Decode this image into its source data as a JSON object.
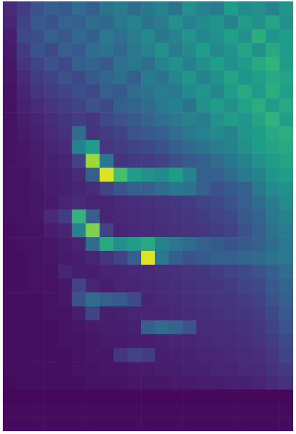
{
  "chart_data": {
    "type": "heatmap",
    "tick_labels": false,
    "color_range": [
      0,
      1
    ],
    "cells": [
      [
        0.12,
        0.18,
        0.25,
        0.3,
        0.28,
        0.35,
        0.3,
        0.38,
        0.42,
        0.35,
        0.4,
        0.45,
        0.38,
        0.5,
        0.45,
        0.42,
        0.55,
        0.48,
        0.5,
        0.45,
        0.52
      ],
      [
        0.1,
        0.2,
        0.28,
        0.25,
        0.32,
        0.3,
        0.36,
        0.33,
        0.4,
        0.45,
        0.38,
        0.42,
        0.5,
        0.44,
        0.48,
        0.52,
        0.45,
        0.55,
        0.5,
        0.58,
        0.5
      ],
      [
        0.08,
        0.22,
        0.24,
        0.3,
        0.27,
        0.34,
        0.3,
        0.4,
        0.36,
        0.42,
        0.47,
        0.4,
        0.45,
        0.52,
        0.46,
        0.5,
        0.56,
        0.5,
        0.62,
        0.52,
        0.55
      ],
      [
        0.07,
        0.18,
        0.26,
        0.22,
        0.3,
        0.28,
        0.35,
        0.38,
        0.33,
        0.4,
        0.44,
        0.5,
        0.42,
        0.48,
        0.55,
        0.47,
        0.52,
        0.58,
        0.5,
        0.6,
        0.54
      ],
      [
        0.06,
        0.15,
        0.2,
        0.25,
        0.22,
        0.3,
        0.32,
        0.28,
        0.37,
        0.4,
        0.36,
        0.45,
        0.5,
        0.44,
        0.5,
        0.56,
        0.5,
        0.54,
        0.6,
        0.65,
        0.55
      ],
      [
        0.06,
        0.12,
        0.18,
        0.2,
        0.25,
        0.22,
        0.28,
        0.32,
        0.35,
        0.3,
        0.42,
        0.38,
        0.46,
        0.52,
        0.45,
        0.5,
        0.58,
        0.52,
        0.56,
        0.6,
        0.58
      ],
      [
        0.05,
        0.1,
        0.15,
        0.18,
        0.2,
        0.24,
        0.22,
        0.3,
        0.28,
        0.35,
        0.38,
        0.42,
        0.4,
        0.48,
        0.52,
        0.46,
        0.55,
        0.6,
        0.54,
        0.62,
        0.56
      ],
      [
        0.05,
        0.09,
        0.12,
        0.15,
        0.18,
        0.2,
        0.25,
        0.22,
        0.3,
        0.32,
        0.35,
        0.4,
        0.44,
        0.38,
        0.5,
        0.55,
        0.5,
        0.57,
        0.62,
        0.55,
        0.6
      ],
      [
        0.05,
        0.08,
        0.1,
        0.13,
        0.15,
        0.18,
        0.16,
        0.22,
        0.25,
        0.28,
        0.32,
        0.36,
        0.4,
        0.45,
        0.42,
        0.5,
        0.55,
        0.52,
        0.58,
        0.64,
        0.56
      ],
      [
        0.05,
        0.07,
        0.09,
        0.12,
        0.14,
        0.35,
        0.15,
        0.18,
        0.2,
        0.25,
        0.28,
        0.3,
        0.35,
        0.4,
        0.44,
        0.48,
        0.45,
        0.52,
        0.55,
        0.6,
        0.62
      ],
      [
        0.05,
        0.06,
        0.08,
        0.1,
        0.12,
        0.45,
        0.55,
        0.16,
        0.18,
        0.2,
        0.22,
        0.26,
        0.3,
        0.34,
        0.38,
        0.42,
        0.45,
        0.5,
        0.55,
        0.58,
        0.6
      ],
      [
        0.05,
        0.06,
        0.07,
        0.09,
        0.1,
        0.2,
        0.85,
        0.4,
        0.15,
        0.17,
        0.18,
        0.2,
        0.24,
        0.28,
        0.3,
        0.35,
        0.4,
        0.45,
        0.5,
        0.55,
        0.58
      ],
      [
        0.05,
        0.05,
        0.07,
        0.08,
        0.09,
        0.12,
        0.3,
        0.95,
        0.7,
        0.55,
        0.5,
        0.48,
        0.55,
        0.45,
        0.3,
        0.3,
        0.35,
        0.4,
        0.45,
        0.52,
        0.55
      ],
      [
        0.05,
        0.05,
        0.06,
        0.08,
        0.09,
        0.1,
        0.12,
        0.2,
        0.25,
        0.3,
        0.3,
        0.35,
        0.4,
        0.38,
        0.3,
        0.25,
        0.28,
        0.3,
        0.4,
        0.48,
        0.5
      ],
      [
        0.05,
        0.05,
        0.06,
        0.07,
        0.1,
        0.12,
        0.1,
        0.1,
        0.12,
        0.13,
        0.14,
        0.15,
        0.16,
        0.18,
        0.2,
        0.22,
        0.25,
        0.3,
        0.35,
        0.42,
        0.48
      ],
      [
        0.05,
        0.05,
        0.06,
        0.12,
        0.18,
        0.65,
        0.3,
        0.1,
        0.11,
        0.12,
        0.13,
        0.14,
        0.15,
        0.16,
        0.18,
        0.2,
        0.22,
        0.28,
        0.32,
        0.4,
        0.45
      ],
      [
        0.04,
        0.05,
        0.05,
        0.08,
        0.1,
        0.45,
        0.8,
        0.2,
        0.1,
        0.11,
        0.12,
        0.13,
        0.14,
        0.15,
        0.16,
        0.18,
        0.2,
        0.25,
        0.3,
        0.38,
        0.42
      ],
      [
        0.04,
        0.05,
        0.05,
        0.06,
        0.08,
        0.1,
        0.35,
        0.6,
        0.5,
        0.55,
        0.6,
        0.45,
        0.4,
        0.35,
        0.3,
        0.28,
        0.25,
        0.28,
        0.3,
        0.35,
        0.4
      ],
      [
        0.04,
        0.04,
        0.05,
        0.06,
        0.07,
        0.08,
        0.1,
        0.15,
        0.2,
        0.3,
        0.95,
        0.4,
        0.3,
        0.25,
        0.28,
        0.3,
        0.3,
        0.32,
        0.34,
        0.38,
        0.4
      ],
      [
        0.04,
        0.04,
        0.05,
        0.05,
        0.1,
        0.08,
        0.08,
        0.1,
        0.1,
        0.11,
        0.12,
        0.13,
        0.14,
        0.15,
        0.16,
        0.18,
        0.2,
        0.22,
        0.25,
        0.3,
        0.35
      ],
      [
        0.04,
        0.04,
        0.05,
        0.05,
        0.06,
        0.2,
        0.1,
        0.08,
        0.1,
        0.1,
        0.11,
        0.12,
        0.13,
        0.14,
        0.15,
        0.16,
        0.18,
        0.2,
        0.22,
        0.28,
        0.32
      ],
      [
        0.04,
        0.04,
        0.04,
        0.05,
        0.06,
        0.25,
        0.35,
        0.3,
        0.28,
        0.22,
        0.1,
        0.11,
        0.12,
        0.13,
        0.14,
        0.15,
        0.16,
        0.18,
        0.2,
        0.25,
        0.3
      ],
      [
        0.04,
        0.04,
        0.04,
        0.05,
        0.05,
        0.08,
        0.2,
        0.08,
        0.09,
        0.1,
        0.1,
        0.1,
        0.11,
        0.12,
        0.13,
        0.14,
        0.15,
        0.16,
        0.18,
        0.22,
        0.28
      ],
      [
        0.04,
        0.04,
        0.04,
        0.04,
        0.05,
        0.06,
        0.07,
        0.08,
        0.08,
        0.09,
        0.3,
        0.35,
        0.32,
        0.25,
        0.12,
        0.12,
        0.13,
        0.14,
        0.16,
        0.2,
        0.25
      ],
      [
        0.04,
        0.04,
        0.04,
        0.04,
        0.05,
        0.05,
        0.06,
        0.07,
        0.07,
        0.08,
        0.08,
        0.09,
        0.1,
        0.1,
        0.11,
        0.12,
        0.12,
        0.13,
        0.15,
        0.18,
        0.22
      ],
      [
        0.04,
        0.04,
        0.04,
        0.04,
        0.04,
        0.05,
        0.06,
        0.06,
        0.15,
        0.2,
        0.18,
        0.08,
        0.09,
        0.09,
        0.1,
        0.1,
        0.11,
        0.12,
        0.13,
        0.16,
        0.2
      ],
      [
        0.04,
        0.04,
        0.04,
        0.04,
        0.04,
        0.05,
        0.05,
        0.06,
        0.06,
        0.07,
        0.07,
        0.08,
        0.08,
        0.09,
        0.09,
        0.1,
        0.1,
        0.11,
        0.12,
        0.14,
        0.17
      ],
      [
        0.03,
        0.04,
        0.04,
        0.04,
        0.04,
        0.04,
        0.05,
        0.05,
        0.05,
        0.06,
        0.06,
        0.06,
        0.07,
        0.07,
        0.08,
        0.08,
        0.09,
        0.09,
        0.1,
        0.12,
        0.14
      ],
      [
        0.02,
        0.02,
        0.02,
        0.02,
        0.02,
        0.02,
        0.02,
        0.02,
        0.02,
        0.02,
        0.02,
        0.02,
        0.02,
        0.02,
        0.02,
        0.02,
        0.02,
        0.02,
        0.02,
        0.02,
        0.02
      ],
      [
        0.03,
        0.03,
        0.03,
        0.03,
        0.03,
        0.03,
        0.03,
        0.03,
        0.03,
        0.03,
        0.03,
        0.03,
        0.03,
        0.03,
        0.03,
        0.03,
        0.03,
        0.03,
        0.03,
        0.03,
        0.03
      ],
      [
        0.03,
        0.03,
        0.03,
        0.03,
        0.03,
        0.03,
        0.03,
        0.03,
        0.03,
        0.03,
        0.03,
        0.03,
        0.03,
        0.03,
        0.03,
        0.03,
        0.03,
        0.03,
        0.03,
        0.03,
        0.03
      ]
    ]
  }
}
